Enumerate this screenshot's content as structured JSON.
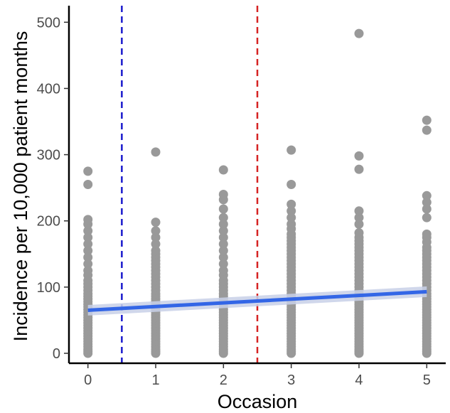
{
  "chart_data": {
    "type": "scatter",
    "title": "",
    "xlabel": "Occasion",
    "ylabel": "Incidence per 10,000 patient months",
    "xlim": [
      -0.28,
      5.28
    ],
    "ylim": [
      -15,
      525
    ],
    "x_ticks": [
      0,
      1,
      2,
      3,
      4,
      5
    ],
    "y_ticks": [
      0,
      100,
      200,
      300,
      400,
      500
    ],
    "x_tick_labels": [
      "0",
      "1",
      "2",
      "3",
      "4",
      "5"
    ],
    "y_tick_labels": [
      "0",
      "100",
      "200",
      "300",
      "400",
      "500"
    ],
    "grid": false,
    "point_color": "#999999",
    "trend_color": "#3366e6",
    "trend_band_color": "#c8d0e8",
    "trend_line": {
      "x": [
        0,
        5
      ],
      "y": [
        65,
        93
      ],
      "band_halfwidth": [
        8,
        8
      ]
    },
    "vlines": [
      {
        "x": 0.5,
        "color": "#1a1acc",
        "style": "dashed"
      },
      {
        "x": 2.5,
        "color": "#d62222",
        "style": "dashed"
      }
    ],
    "series": [
      {
        "x": 0,
        "y": [
          0,
          3,
          6,
          10,
          14,
          18,
          22,
          26,
          30,
          34,
          38,
          42,
          46,
          50,
          54,
          58,
          62,
          66,
          70,
          74,
          78,
          82,
          86,
          90,
          95,
          100,
          105,
          110,
          118,
          125,
          135,
          145,
          155,
          165,
          175,
          185,
          195,
          202,
          255,
          275
        ]
      },
      {
        "x": 1,
        "y": [
          0,
          3,
          6,
          10,
          14,
          18,
          22,
          26,
          30,
          34,
          38,
          42,
          46,
          50,
          54,
          58,
          62,
          66,
          70,
          74,
          78,
          82,
          86,
          90,
          95,
          100,
          105,
          110,
          115,
          120,
          125,
          130,
          135,
          140,
          145,
          150,
          155,
          165,
          175,
          185,
          198,
          304
        ]
      },
      {
        "x": 2,
        "y": [
          0,
          3,
          6,
          10,
          14,
          18,
          22,
          26,
          30,
          34,
          38,
          42,
          46,
          50,
          54,
          58,
          62,
          66,
          70,
          74,
          78,
          82,
          86,
          90,
          95,
          100,
          105,
          110,
          118,
          125,
          135,
          145,
          155,
          165,
          175,
          185,
          195,
          205,
          218,
          232,
          240,
          277
        ]
      },
      {
        "x": 3,
        "y": [
          0,
          3,
          6,
          10,
          14,
          18,
          22,
          26,
          30,
          34,
          38,
          42,
          46,
          50,
          54,
          58,
          62,
          66,
          70,
          74,
          78,
          82,
          86,
          90,
          95,
          100,
          105,
          110,
          115,
          120,
          125,
          130,
          135,
          140,
          145,
          150,
          155,
          160,
          165,
          170,
          175,
          180,
          188,
          195,
          205,
          215,
          225,
          255,
          307
        ]
      },
      {
        "x": 4,
        "y": [
          0,
          3,
          6,
          10,
          14,
          18,
          22,
          26,
          30,
          34,
          38,
          42,
          46,
          50,
          54,
          58,
          62,
          66,
          70,
          74,
          78,
          82,
          86,
          90,
          95,
          100,
          105,
          110,
          115,
          120,
          125,
          130,
          135,
          140,
          145,
          150,
          155,
          160,
          165,
          170,
          175,
          182,
          195,
          205,
          215,
          278,
          298,
          483
        ]
      },
      {
        "x": 5,
        "y": [
          0,
          3,
          6,
          10,
          14,
          18,
          22,
          26,
          30,
          34,
          38,
          42,
          46,
          50,
          54,
          58,
          62,
          66,
          70,
          74,
          78,
          82,
          86,
          90,
          95,
          100,
          105,
          110,
          115,
          120,
          125,
          130,
          135,
          140,
          145,
          150,
          155,
          160,
          168,
          175,
          180,
          205,
          218,
          228,
          238,
          337,
          352
        ]
      }
    ]
  }
}
